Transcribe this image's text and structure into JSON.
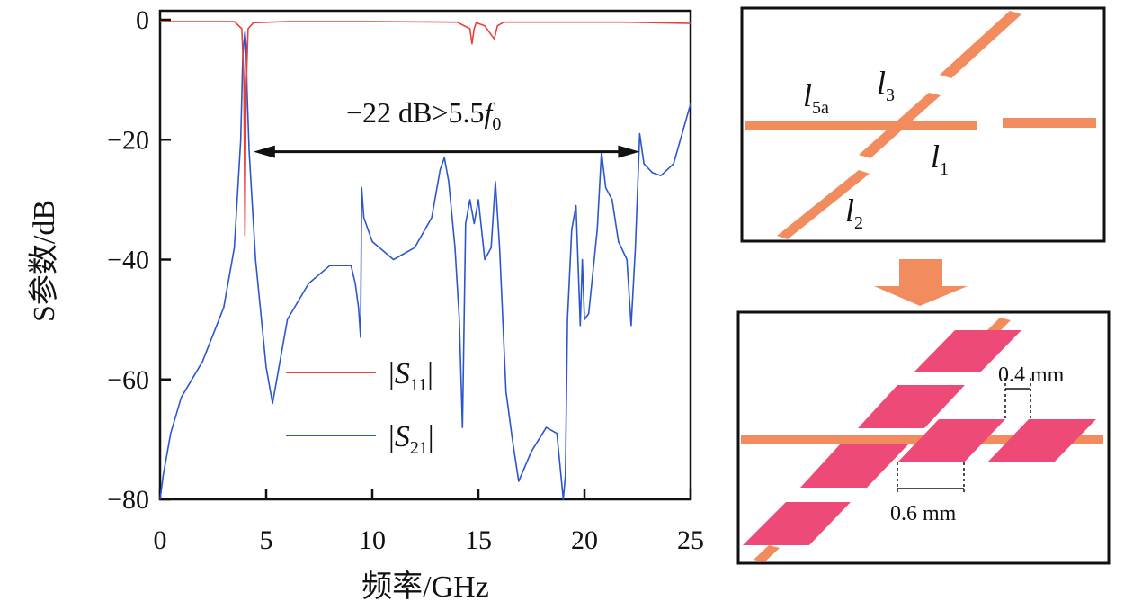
{
  "chart_data": {
    "type": "line",
    "xlabel": "频率/GHz",
    "ylabel": "S参数/dB",
    "xlim": [
      0,
      25
    ],
    "ylim": [
      -80,
      0
    ],
    "x_ticks": [
      "0",
      "5",
      "10",
      "15",
      "20",
      "25"
    ],
    "y_ticks": [
      "0",
      "−20",
      "−40",
      "−60",
      "−80"
    ],
    "grid": false,
    "legend_position": "center",
    "annotation": {
      "text_main": "−22 dB>5.5",
      "text_var": "f",
      "text_sub": "0",
      "arrow_from_x": 4.4,
      "arrow_to_x": 22.6,
      "arrow_y": -22
    },
    "series": [
      {
        "name": "|S11|",
        "name_main": "S",
        "name_sub": "11",
        "color": "#e8413c",
        "x": [
          0,
          2,
          3.5,
          3.85,
          3.95,
          4.0,
          4.05,
          4.15,
          4.4,
          6,
          10,
          14,
          14.6,
          14.7,
          14.8,
          14.9,
          15.3,
          15.6,
          15.75,
          15.9,
          16.2,
          20,
          22,
          25
        ],
        "y": [
          -0.3,
          -0.3,
          -0.3,
          -1.5,
          -10,
          -36,
          -12,
          -1.5,
          -0.5,
          -0.3,
          -0.3,
          -0.4,
          -1.5,
          -4.0,
          -1.5,
          -0.5,
          -1.0,
          -2.5,
          -3.2,
          -1.0,
          -0.4,
          -0.4,
          -0.4,
          -0.6
        ]
      },
      {
        "name": "|S21|",
        "name_main": "S",
        "name_sub": "21",
        "color": "#2b56cf",
        "x": [
          0,
          0.15,
          0.5,
          1,
          2,
          3,
          3.5,
          3.8,
          3.9,
          4.0,
          4.05,
          4.1,
          4.2,
          4.5,
          5.0,
          5.3,
          5.5,
          6,
          7,
          8,
          9,
          9.2,
          9.35,
          9.45,
          9.5,
          9.6,
          10,
          11,
          12,
          12.8,
          13.2,
          13.4,
          13.6,
          13.9,
          14.1,
          14.25,
          14.4,
          14.6,
          14.8,
          15.0,
          15.3,
          15.6,
          15.8,
          16.0,
          16.3,
          16.6,
          16.9,
          17.5,
          18.2,
          18.7,
          19.0,
          19.1,
          19.2,
          19.4,
          19.6,
          19.8,
          19.9,
          20.0,
          20.2,
          20.6,
          20.8,
          21.0,
          21.3,
          21.6,
          22.0,
          22.2,
          22.4,
          22.6,
          22.8,
          23.2,
          23.6,
          24.2,
          25
        ],
        "y": [
          -80,
          -76,
          -69,
          -63,
          -57,
          -48,
          -38,
          -20,
          -6,
          -2,
          -4,
          -12,
          -22,
          -40,
          -58,
          -64,
          -60,
          -50,
          -44,
          -41,
          -41,
          -44,
          -48,
          -53,
          -28,
          -33,
          -37,
          -40,
          -38,
          -33,
          -25,
          -23,
          -27,
          -38,
          -50,
          -68,
          -34,
          -30,
          -34,
          -30,
          -40,
          -38,
          -27,
          -38,
          -62,
          -70,
          -77,
          -72,
          -68,
          -69,
          -80,
          -76,
          -50,
          -35,
          -31,
          -51,
          -40,
          -50,
          -49,
          -35,
          -22,
          -28,
          -30,
          -37,
          -40,
          -51,
          -38,
          -19,
          -24,
          -25.5,
          -26,
          -24,
          -14
        ]
      }
    ]
  },
  "diagram_top": {
    "labels": [
      {
        "main": "l",
        "sub": "5a"
      },
      {
        "main": "l",
        "sub": "3"
      },
      {
        "main": "l",
        "sub": "1"
      },
      {
        "main": "l",
        "sub": "2"
      }
    ],
    "color": "#f28b5e"
  },
  "diagram_bottom": {
    "dim_gap": "0.4 mm",
    "dim_width": "0.6 mm",
    "patch_color": "#ee4a78",
    "line_color": "#f28b5e"
  }
}
